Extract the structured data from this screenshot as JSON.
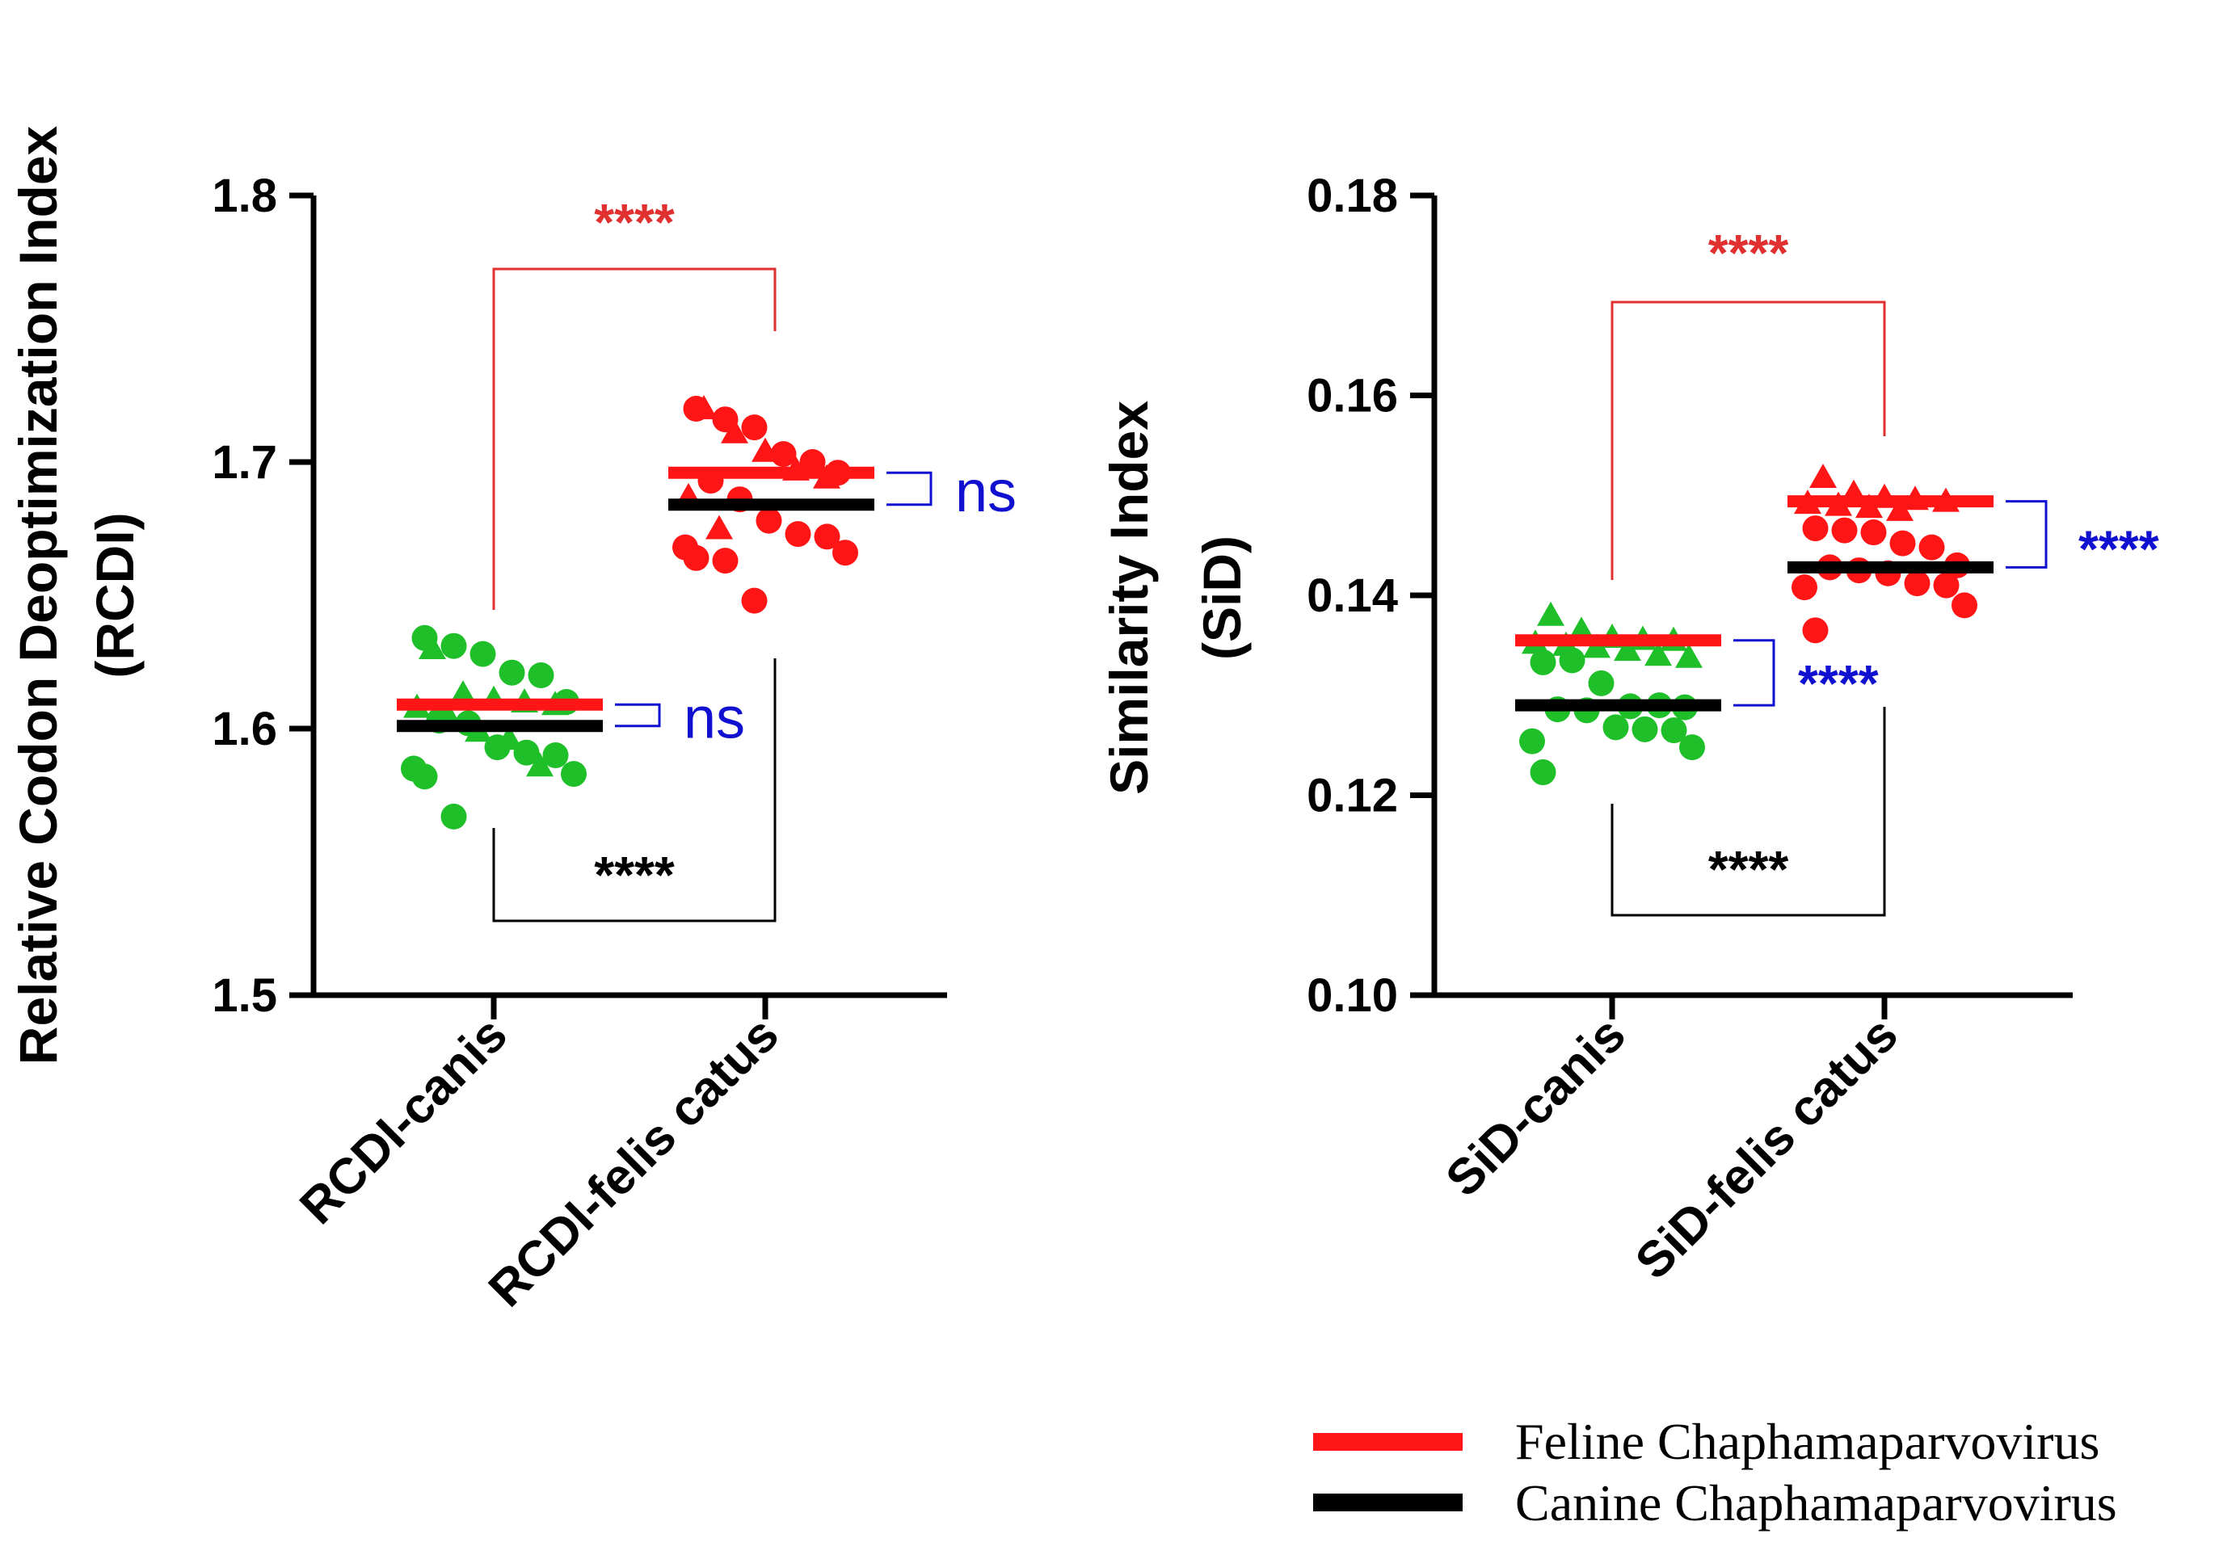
{
  "colors": {
    "canis_points": "#1fbf2a",
    "felis_points": "#ff1515",
    "feline_line": "#ff1515",
    "canine_line": "#000000",
    "bracket_red": "#e03030",
    "bracket_black": "#000000",
    "bracket_blue": "#1010d0"
  },
  "legend": {
    "feline": "Feline Chaphamaparvovirus",
    "canine": "Canine Chaphamaparvovirus"
  },
  "chart_data": [
    {
      "type": "scatter",
      "title": "",
      "ylabel_line1": "Relative Codon Deoptimization Index",
      "ylabel_line2": "(RCDI)",
      "ylim": [
        1.5,
        1.8
      ],
      "yticks": [
        "1.5",
        "1.6",
        "1.7",
        "1.8"
      ],
      "categories": [
        "RCDI-canis",
        "RCDI-felis catus"
      ],
      "groups": [
        {
          "name": "RCDI-canis",
          "feline_mean": 1.609,
          "canine_mean": 1.601,
          "circles": [
            1.634,
            1.631,
            1.628,
            1.621,
            1.62,
            1.61,
            1.603,
            1.602,
            1.593,
            1.591,
            1.59,
            1.585,
            1.583,
            1.582,
            1.567
          ],
          "triangles": [
            1.63,
            1.613,
            1.611,
            1.61,
            1.609,
            1.608,
            1.605,
            1.599,
            1.596,
            1.586
          ]
        },
        {
          "name": "RCDI-felis catus",
          "feline_mean": 1.696,
          "canine_mean": 1.684,
          "circles": [
            1.72,
            1.716,
            1.713,
            1.703,
            1.7,
            1.696,
            1.693,
            1.686,
            1.678,
            1.673,
            1.672,
            1.668,
            1.666,
            1.664,
            1.663,
            1.648
          ],
          "triangles": [
            1.72,
            1.711,
            1.704,
            1.697,
            1.694,
            1.687,
            1.675
          ]
        }
      ],
      "comparisons": [
        {
          "label": "****",
          "between": "RCDI-canis vs RCDI-felis catus (Feline)"
        },
        {
          "label": "****",
          "between": "RCDI-canis vs RCDI-felis catus (Canine)"
        },
        {
          "label": "ns",
          "between": "RCDI-canis Feline vs Canine"
        },
        {
          "label": "ns",
          "between": "RCDI-felis catus Feline vs Canine"
        }
      ]
    },
    {
      "type": "scatter",
      "title": "",
      "ylabel_line1": "Similarity Index",
      "ylabel_line2": "(SiD)",
      "ylim": [
        0.1,
        0.18
      ],
      "yticks": [
        "0.10",
        "0.12",
        "0.14",
        "0.16",
        "0.18"
      ],
      "categories": [
        "SiD-canis",
        "SiD-felis catus"
      ],
      "groups": [
        {
          "name": "SiD-canis",
          "feline_mean": 0.1355,
          "canine_mean": 0.129,
          "circles": [
            0.1333,
            0.1335,
            0.1312,
            0.1289,
            0.129,
            0.1288,
            0.1286,
            0.1285,
            0.1268,
            0.1266,
            0.1265,
            0.1254,
            0.1248,
            0.1223
          ],
          "triangles": [
            0.138,
            0.1365,
            0.1358,
            0.1356,
            0.1355,
            0.1352,
            0.135,
            0.1348,
            0.1345,
            0.134,
            0.1338
          ]
        },
        {
          "name": "SiD-felis catus",
          "feline_mean": 0.1494,
          "canine_mean": 0.1428,
          "circles": [
            0.1467,
            0.1465,
            0.1463,
            0.1452,
            0.1448,
            0.143,
            0.1428,
            0.1425,
            0.1422,
            0.1412,
            0.141,
            0.1408,
            0.139,
            0.1365
          ],
          "triangles": [
            0.1518,
            0.1502,
            0.1498,
            0.1496,
            0.1494,
            0.1492,
            0.149,
            0.1488,
            0.1485
          ]
        }
      ],
      "comparisons": [
        {
          "label": "****",
          "between": "SiD-canis vs SiD-felis catus (Feline)"
        },
        {
          "label": "****",
          "between": "SiD-canis vs SiD-felis catus (Canine)"
        },
        {
          "label": "****",
          "between": "SiD-canis Feline vs Canine"
        },
        {
          "label": "****",
          "between": "SiD-felis catus Feline vs Canine"
        }
      ]
    }
  ]
}
